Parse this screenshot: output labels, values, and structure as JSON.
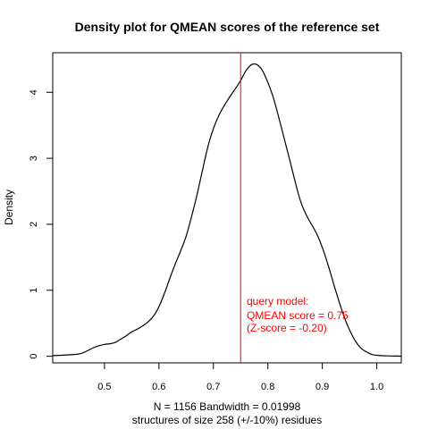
{
  "chart_data": {
    "type": "line",
    "title": "Density plot for QMEAN scores of the reference set",
    "ylabel": "Density",
    "xlabel_line1": "N = 1156   Bandwidth = 0.01998",
    "xlabel_line2": "structures of size 258 (+/-10%) residues",
    "xlim": [
      0.405,
      1.045
    ],
    "ylim": [
      -0.1,
      4.6
    ],
    "x_ticks": [
      0.5,
      0.6,
      0.7,
      0.8,
      0.9,
      1.0
    ],
    "x_tick_labels": [
      "0.5",
      "0.6",
      "0.7",
      "0.8",
      "0.9",
      "1.0"
    ],
    "y_ticks": [
      0,
      1,
      2,
      3,
      4
    ],
    "y_tick_labels": [
      "0",
      "1",
      "2",
      "3",
      "4"
    ],
    "series": [
      {
        "color": "#000000",
        "points": [
          [
            0.405,
            0.01
          ],
          [
            0.43,
            0.02
          ],
          [
            0.45,
            0.03
          ],
          [
            0.46,
            0.05
          ],
          [
            0.47,
            0.09
          ],
          [
            0.48,
            0.13
          ],
          [
            0.49,
            0.16
          ],
          [
            0.5,
            0.18
          ],
          [
            0.51,
            0.19
          ],
          [
            0.52,
            0.21
          ],
          [
            0.53,
            0.26
          ],
          [
            0.54,
            0.31
          ],
          [
            0.55,
            0.37
          ],
          [
            0.56,
            0.41
          ],
          [
            0.57,
            0.46
          ],
          [
            0.58,
            0.52
          ],
          [
            0.59,
            0.61
          ],
          [
            0.6,
            0.75
          ],
          [
            0.61,
            0.95
          ],
          [
            0.62,
            1.18
          ],
          [
            0.63,
            1.4
          ],
          [
            0.64,
            1.6
          ],
          [
            0.65,
            1.82
          ],
          [
            0.66,
            2.12
          ],
          [
            0.67,
            2.45
          ],
          [
            0.68,
            2.82
          ],
          [
            0.69,
            3.18
          ],
          [
            0.7,
            3.45
          ],
          [
            0.71,
            3.65
          ],
          [
            0.72,
            3.8
          ],
          [
            0.73,
            3.93
          ],
          [
            0.74,
            4.05
          ],
          [
            0.75,
            4.18
          ],
          [
            0.76,
            4.33
          ],
          [
            0.77,
            4.42
          ],
          [
            0.78,
            4.42
          ],
          [
            0.79,
            4.33
          ],
          [
            0.8,
            4.15
          ],
          [
            0.81,
            3.92
          ],
          [
            0.82,
            3.62
          ],
          [
            0.83,
            3.3
          ],
          [
            0.84,
            2.98
          ],
          [
            0.85,
            2.65
          ],
          [
            0.86,
            2.35
          ],
          [
            0.87,
            2.15
          ],
          [
            0.88,
            2.0
          ],
          [
            0.89,
            1.85
          ],
          [
            0.9,
            1.65
          ],
          [
            0.91,
            1.4
          ],
          [
            0.92,
            1.12
          ],
          [
            0.93,
            0.85
          ],
          [
            0.94,
            0.6
          ],
          [
            0.95,
            0.4
          ],
          [
            0.96,
            0.24
          ],
          [
            0.97,
            0.13
          ],
          [
            0.98,
            0.07
          ],
          [
            0.99,
            0.03
          ],
          [
            1.0,
            0.015
          ],
          [
            1.02,
            0.005
          ],
          [
            1.045,
            0.002
          ]
        ]
      }
    ],
    "marker": {
      "x": 0.75,
      "color": "#ff0000",
      "label_lines": [
        "query model:",
        "QMEAN score = 0.75",
        "(Z-score = -0.20)"
      ]
    }
  }
}
